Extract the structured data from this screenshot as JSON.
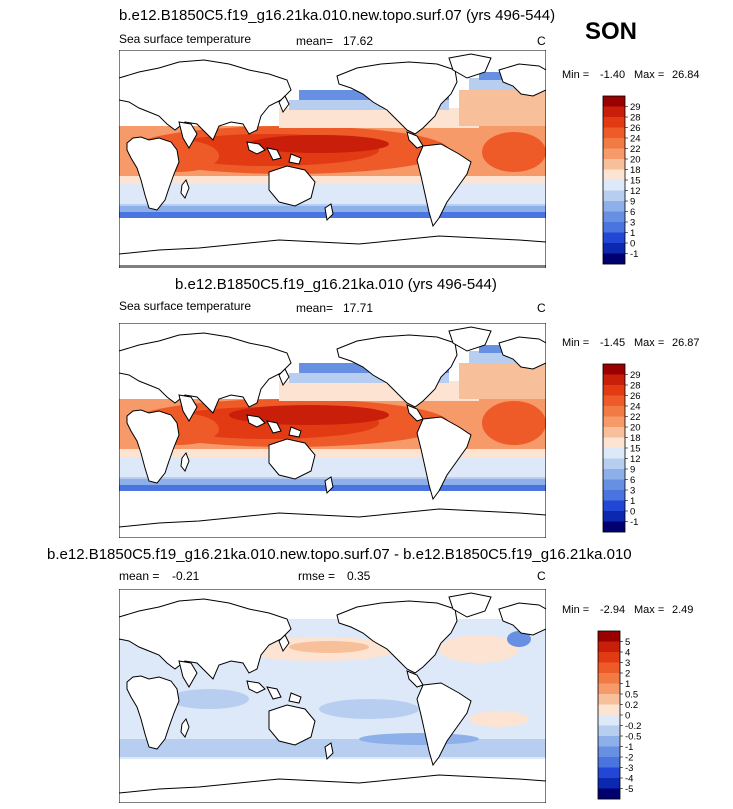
{
  "season": "SON",
  "chart_data": [
    {
      "type": "heatmap",
      "title": "b.e12.B1850C5.f19_g16.21ka.010.new.topo.surf.07 (yrs 496-544)",
      "variable": "Sea surface temperature",
      "mean_label": "mean=",
      "mean": "17.62",
      "units": "C",
      "min_label": "Min =",
      "min": "-1.40",
      "max_label": "Max =",
      "max": "26.84",
      "levels": [
        "29",
        "28",
        "26",
        "24",
        "22",
        "20",
        "18",
        "15",
        "12",
        "9",
        "6",
        "3",
        "1",
        "0",
        "-1"
      ],
      "colors": [
        "#9b0000",
        "#c81e0a",
        "#e23a13",
        "#ee5b28",
        "#f27a44",
        "#f59a68",
        "#f8bf9b",
        "#fde4d2",
        "#dde8f8",
        "#b8cef1",
        "#8eb0ea",
        "#6890e2",
        "#4a74df",
        "#2246d6",
        "#0a28b0",
        "#000070"
      ]
    },
    {
      "type": "heatmap",
      "title": "b.e12.B1850C5.f19_g16.21ka.010 (yrs 496-544)",
      "variable": "Sea surface temperature",
      "mean_label": "mean=",
      "mean": "17.71",
      "units": "C",
      "min_label": "Min =",
      "min": "-1.45",
      "max_label": "Max =",
      "max": "26.87",
      "levels": [
        "29",
        "28",
        "26",
        "24",
        "22",
        "20",
        "18",
        "15",
        "12",
        "9",
        "6",
        "3",
        "1",
        "0",
        "-1"
      ],
      "colors": [
        "#9b0000",
        "#c81e0a",
        "#e23a13",
        "#ee5b28",
        "#f27a44",
        "#f59a68",
        "#f8bf9b",
        "#fde4d2",
        "#dde8f8",
        "#b8cef1",
        "#8eb0ea",
        "#6890e2",
        "#4a74df",
        "#2246d6",
        "#0a28b0",
        "#000070"
      ]
    },
    {
      "type": "heatmap",
      "title": "b.e12.B1850C5.f19_g16.21ka.010.new.topo.surf.07 - b.e12.B1850C5.f19_g16.21ka.010",
      "mean_label": "mean =",
      "mean": "-0.21",
      "rmse_label": "rmse =",
      "rmse": "0.35",
      "units": "C",
      "min_label": "Min =",
      "min": "-2.94",
      "max_label": "Max =",
      "max": "2.49",
      "levels": [
        "5",
        "4",
        "3",
        "2",
        "1",
        "0.5",
        "0.2",
        "0",
        "-0.2",
        "-0.5",
        "-1",
        "-2",
        "-3",
        "-4",
        "-5"
      ],
      "colors": [
        "#9b0000",
        "#c81e0a",
        "#e23a13",
        "#ee5b28",
        "#f27a44",
        "#f59a68",
        "#f8bf9b",
        "#fde4d2",
        "#dde8f8",
        "#b8cef1",
        "#8eb0ea",
        "#6890e2",
        "#4a74df",
        "#2246d6",
        "#0a28b0",
        "#000070"
      ]
    }
  ]
}
